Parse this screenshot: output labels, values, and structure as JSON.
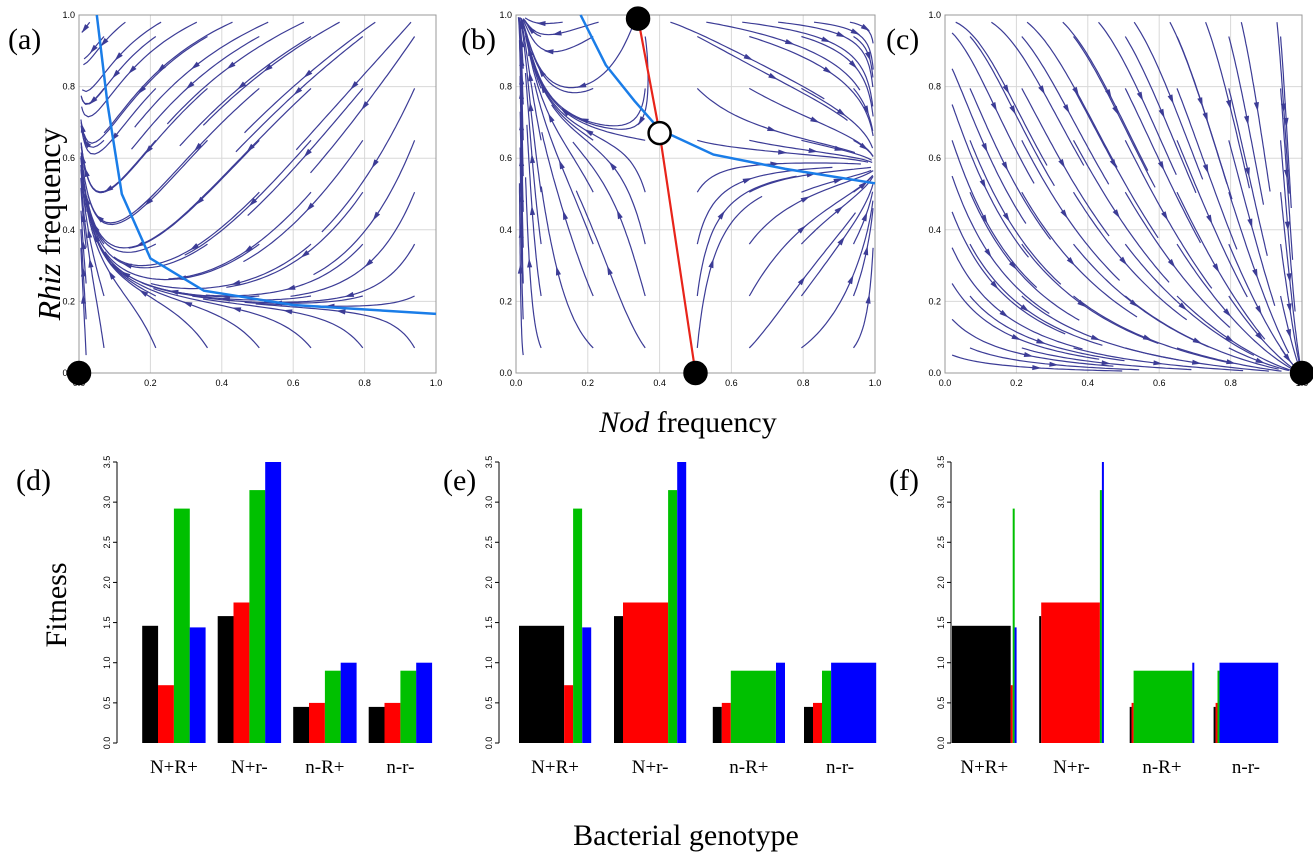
{
  "x_axis_title_prefix": "Nod",
  "x_axis_title_suffix": " frequency",
  "y_axis_title_prefix": "Rhiz",
  "y_axis_title_suffix": " frequency",
  "bar_axis_title": "Fitness",
  "bar_x_title": "Bacterial genotype",
  "colors": {
    "stream": "#3c3c96",
    "isocline": "#1a7de8",
    "separatrix": "#e8241a",
    "series": [
      "#000000",
      "#ff0000",
      "#00c000",
      "#0000ff"
    ]
  },
  "chart_data": [
    {
      "panel": "(a)",
      "type": "phase-portrait",
      "xlim": [
        0,
        1
      ],
      "ylim": [
        0,
        1
      ],
      "x_ticks": [
        "0.0",
        "0.2",
        "0.4",
        "0.6",
        "0.8",
        "1.0"
      ],
      "y_ticks": [
        "0.0",
        "0.2",
        "0.4",
        "0.6",
        "0.8",
        "1.0"
      ],
      "isocline": [
        [
          0.05,
          1.0
        ],
        [
          0.08,
          0.75
        ],
        [
          0.12,
          0.5
        ],
        [
          0.2,
          0.32
        ],
        [
          0.35,
          0.23
        ],
        [
          0.6,
          0.19
        ],
        [
          1.0,
          0.165
        ]
      ],
      "equilibria": [
        {
          "x": 0.0,
          "y": 0.0,
          "stable": true
        }
      ]
    },
    {
      "panel": "(b)",
      "type": "phase-portrait",
      "xlim": [
        0,
        1
      ],
      "ylim": [
        0,
        1
      ],
      "x_ticks": [
        "0.0",
        "0.2",
        "0.4",
        "0.6",
        "0.8",
        "1.0"
      ],
      "y_ticks": [
        "0.0",
        "0.2",
        "0.4",
        "0.6",
        "0.8",
        "1.0"
      ],
      "isocline": [
        [
          0.18,
          1.0
        ],
        [
          0.25,
          0.86
        ],
        [
          0.33,
          0.76
        ],
        [
          0.4,
          0.68
        ],
        [
          0.55,
          0.61
        ],
        [
          0.75,
          0.57
        ],
        [
          1.0,
          0.53
        ]
      ],
      "separatrix": [
        [
          0.34,
          0.99
        ],
        [
          0.4,
          0.67
        ],
        [
          0.5,
          0.0
        ]
      ],
      "equilibria": [
        {
          "x": 0.34,
          "y": 0.99,
          "stable": true
        },
        {
          "x": 0.4,
          "y": 0.67,
          "stable": false
        },
        {
          "x": 0.5,
          "y": 0.0,
          "stable": true
        }
      ]
    },
    {
      "panel": "(c)",
      "type": "phase-portrait",
      "xlim": [
        0,
        1
      ],
      "ylim": [
        0,
        1
      ],
      "x_ticks": [
        "0.0",
        "0.2",
        "0.4",
        "0.6",
        "0.8",
        "1.0"
      ],
      "y_ticks": [
        "0.0",
        "0.2",
        "0.4",
        "0.6",
        "0.8",
        "1.0"
      ],
      "equilibria": [
        {
          "x": 1.0,
          "y": 0.0,
          "stable": true
        }
      ]
    },
    {
      "panel": "(d)",
      "type": "bar",
      "ylim": [
        0,
        3.5
      ],
      "y_ticks": [
        "0.0",
        "0.5",
        "1.0",
        "1.5",
        "2.0",
        "2.5",
        "3.0",
        "3.5"
      ],
      "categories": [
        "N+R+",
        "N+r-",
        "n-R+",
        "n-r-"
      ],
      "series": [
        {
          "values": [
            1.46,
            1.58,
            0.45,
            0.45
          ],
          "widths": [
            1,
            1,
            1,
            1
          ]
        },
        {
          "values": [
            0.72,
            1.75,
            0.5,
            0.5
          ],
          "widths": [
            1,
            1,
            1,
            1
          ]
        },
        {
          "values": [
            2.92,
            3.15,
            0.9,
            0.9
          ],
          "widths": [
            1,
            1,
            1,
            1
          ]
        },
        {
          "values": [
            1.44,
            3.5,
            1.0,
            1.0
          ],
          "widths": [
            1,
            1,
            1,
            1
          ]
        }
      ]
    },
    {
      "panel": "(e)",
      "type": "bar",
      "ylim": [
        0,
        3.5
      ],
      "y_ticks": [
        "0.0",
        "0.5",
        "1.0",
        "1.5",
        "2.0",
        "2.5",
        "3.0",
        "3.5"
      ],
      "categories": [
        "N+R+",
        "N+r-",
        "n-R+",
        "n-r-"
      ],
      "series": [
        {
          "values": [
            1.46,
            1.58,
            0.45,
            0.45
          ],
          "widths": [
            2.5,
            0.5,
            0.5,
            0.5
          ]
        },
        {
          "values": [
            0.72,
            1.75,
            0.5,
            0.5
          ],
          "widths": [
            0.5,
            2.5,
            0.5,
            0.5
          ]
        },
        {
          "values": [
            2.92,
            3.15,
            0.9,
            0.9
          ],
          "widths": [
            0.5,
            0.5,
            2.5,
            0.5
          ]
        },
        {
          "values": [
            1.44,
            3.5,
            1.0,
            1.0
          ],
          "widths": [
            0.5,
            0.5,
            0.5,
            2.5
          ]
        }
      ]
    },
    {
      "panel": "(f)",
      "type": "bar",
      "ylim": [
        0,
        3.5
      ],
      "y_ticks": [
        "0.0",
        "0.5",
        "1.0",
        "1.5",
        "2.0",
        "2.5",
        "3.0",
        "3.5"
      ],
      "categories": [
        "N+R+",
        "N+r-",
        "n-R+",
        "n-r-"
      ],
      "series": [
        {
          "values": [
            1.46,
            1.58,
            0.45,
            0.45
          ],
          "widths": [
            6,
            0.2,
            0.2,
            0.2
          ]
        },
        {
          "values": [
            0.72,
            1.75,
            0.5,
            0.5
          ],
          "widths": [
            0.2,
            6,
            0.2,
            0.2
          ]
        },
        {
          "values": [
            2.92,
            3.15,
            0.9,
            0.9
          ],
          "widths": [
            0.2,
            0.2,
            6,
            0.2
          ]
        },
        {
          "values": [
            1.44,
            3.5,
            1.0,
            1.0
          ],
          "widths": [
            0.2,
            0.2,
            0.2,
            6
          ]
        }
      ]
    }
  ]
}
